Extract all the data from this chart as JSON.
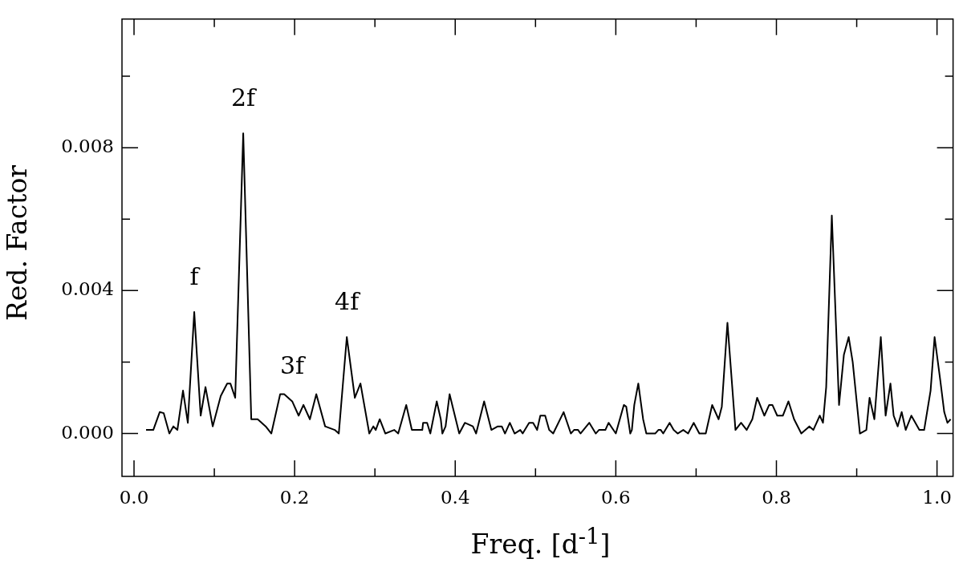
{
  "chart_data": {
    "type": "line",
    "xlabel": "Freq. [d$^{-1}$]",
    "ylabel": "Red. Factor",
    "xlim": [
      -0.015,
      1.02
    ],
    "ylim": [
      -0.0012,
      0.0116
    ],
    "xticks": [
      {
        "value": 0,
        "label": "0.0"
      },
      {
        "value": 0.1,
        "label": null
      },
      {
        "value": 0.2,
        "label": "0.2"
      },
      {
        "value": 0.3,
        "label": null
      },
      {
        "value": 0.4,
        "label": "0.4"
      },
      {
        "value": 0.5,
        "label": null
      },
      {
        "value": 0.6,
        "label": "0.6"
      },
      {
        "value": 0.7,
        "label": null
      },
      {
        "value": 0.8,
        "label": "0.8"
      },
      {
        "value": 0.9,
        "label": null
      },
      {
        "value": 1.0,
        "label": "1.0"
      }
    ],
    "yticks": [
      {
        "value": 0,
        "label": "0.000"
      },
      {
        "value": 0.002,
        "label": null
      },
      {
        "value": 0.004,
        "label": "0.004"
      },
      {
        "value": 0.006,
        "label": null
      },
      {
        "value": 0.008,
        "label": "0.008"
      },
      {
        "value": 0.01,
        "label": null
      }
    ],
    "grid": false,
    "legend": false,
    "annotations": [
      {
        "text": "f",
        "x": 0.075,
        "y": 0.0034
      },
      {
        "text": "2f",
        "x": 0.136,
        "y": 0.0084
      },
      {
        "text": "3f",
        "x": 0.197,
        "y": 0.0009
      },
      {
        "text": "4f",
        "x": 0.265,
        "y": 0.0027
      }
    ],
    "series": [
      {
        "color": "#000000",
        "x": [
          0.015,
          0.024,
          0.032,
          0.037,
          0.044,
          0.049,
          0.054,
          0.061,
          0.067,
          0.075,
          0.083,
          0.089,
          0.098,
          0.108,
          0.116,
          0.12,
          0.126,
          0.136,
          0.146,
          0.154,
          0.164,
          0.171,
          0.182,
          0.187,
          0.197,
          0.205,
          0.211,
          0.219,
          0.227,
          0.238,
          0.25,
          0.255,
          0.265,
          0.275,
          0.282,
          0.293,
          0.298,
          0.301,
          0.306,
          0.313,
          0.324,
          0.329,
          0.339,
          0.346,
          0.359,
          0.36,
          0.365,
          0.369,
          0.377,
          0.382,
          0.384,
          0.388,
          0.393,
          0.405,
          0.412,
          0.422,
          0.426,
          0.436,
          0.445,
          0.453,
          0.458,
          0.462,
          0.468,
          0.474,
          0.481,
          0.484,
          0.492,
          0.497,
          0.502,
          0.506,
          0.512,
          0.517,
          0.522,
          0.535,
          0.544,
          0.548,
          0.553,
          0.556,
          0.567,
          0.575,
          0.579,
          0.587,
          0.591,
          0.6,
          0.61,
          0.613,
          0.618,
          0.62,
          0.623,
          0.628,
          0.634,
          0.638,
          0.649,
          0.653,
          0.656,
          0.659,
          0.667,
          0.672,
          0.677,
          0.684,
          0.69,
          0.697,
          0.704,
          0.712,
          0.72,
          0.728,
          0.732,
          0.739,
          0.749,
          0.756,
          0.763,
          0.77,
          0.776,
          0.785,
          0.791,
          0.795,
          0.801,
          0.808,
          0.815,
          0.822,
          0.831,
          0.841,
          0.846,
          0.854,
          0.858,
          0.862,
          0.869,
          0.878,
          0.884,
          0.89,
          0.895,
          0.904,
          0.912,
          0.916,
          0.922,
          0.93,
          0.936,
          0.942,
          0.946,
          0.951,
          0.956,
          0.961,
          0.968,
          0.978,
          0.984,
          0.992,
          0.997,
          1.004,
          1.009,
          1.013,
          1.017
        ],
        "values": [
          0.0001,
          0.0001,
          0.0006,
          0.00057,
          0,
          0.0002,
          0.0001,
          0.0012,
          0.0003,
          0.0034,
          0.0005,
          0.0013,
          0.0002,
          0.00105,
          0.0014,
          0.0014,
          0.001,
          0.0084,
          0.0004,
          0.0004,
          0.0002,
          0,
          0.0011,
          0.0011,
          0.0009,
          0.0005,
          0.0008,
          0.0004,
          0.0011,
          0.0002,
          0.0001,
          0,
          0.0027,
          0.001,
          0.0014,
          0,
          0.0002,
          0.0001,
          0.0004,
          0,
          0.0001,
          0,
          0.0008,
          0.0001,
          0.0001,
          0.0003,
          0.0003,
          0,
          0.0009,
          0.0004,
          0,
          0.0002,
          0.0011,
          0,
          0.0003,
          0.0002,
          0,
          0.0009,
          0.0001,
          0.0002,
          0.0002,
          0,
          0.0003,
          0,
          0.0001,
          0,
          0.0003,
          0.0003,
          0.0001,
          0.0005,
          0.0005,
          0.0001,
          0,
          0.0006,
          0,
          0.0001,
          0.0001,
          0,
          0.0003,
          0,
          0.0001,
          0.0001,
          0.0003,
          0,
          0.0008,
          0.00075,
          0,
          0.0001,
          0.0008,
          0.0014,
          0.0004,
          0,
          0,
          0.0001,
          0.0001,
          0,
          0.0003,
          0.0001,
          0,
          0.0001,
          0,
          0.0003,
          0,
          0,
          0.0008,
          0.0004,
          0.00075,
          0.0031,
          0.0001,
          0.0003,
          0.0001,
          0.0004,
          0.001,
          0.0005,
          0.0008,
          0.0008,
          0.0005,
          0.0005,
          0.0009,
          0.0004,
          0,
          0.0002,
          0.0001,
          0.0005,
          0.0003,
          0.0013,
          0.0061,
          0.0008,
          0.0022,
          0.0027,
          0.002,
          0,
          0.0001,
          0.001,
          0.0004,
          0.0027,
          0.0005,
          0.0014,
          0.0005,
          0.0002,
          0.0006,
          0.0001,
          0.0005,
          0.0001,
          0.0001,
          0.0012,
          0.0027,
          0.0015,
          0.0006,
          0.0003,
          0.0004
        ]
      }
    ]
  }
}
